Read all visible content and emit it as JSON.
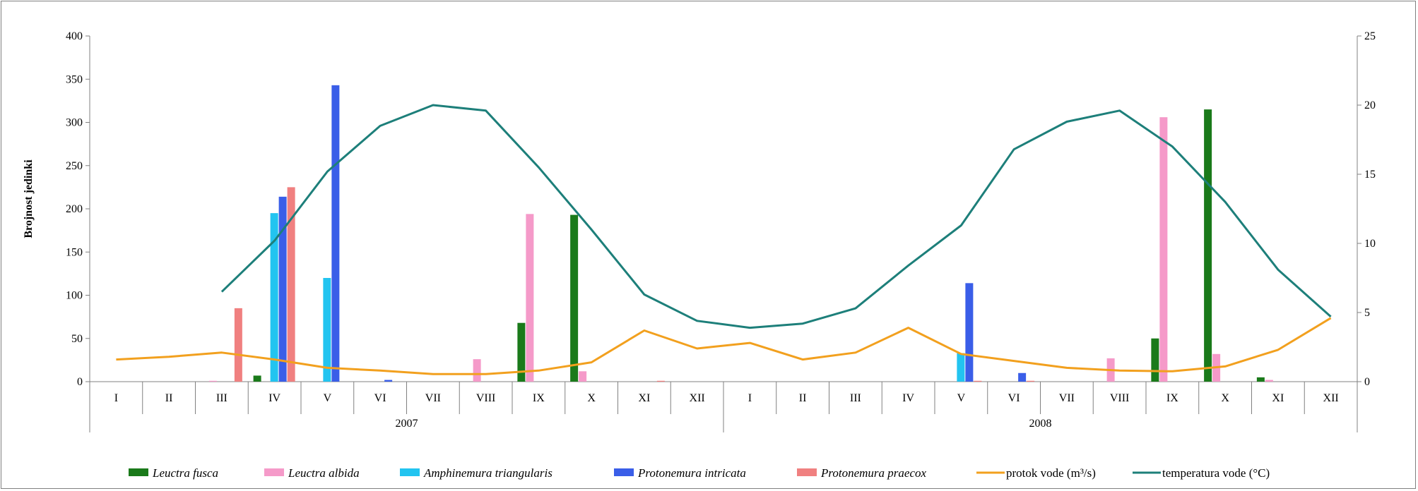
{
  "chart_data": {
    "type": "bar",
    "ylabel": "Brojnost jedinki",
    "ylim": [
      0,
      400
    ],
    "yticks": [
      0,
      50,
      100,
      150,
      200,
      250,
      300,
      350,
      400
    ],
    "y2lim": [
      0,
      25
    ],
    "y2ticks": [
      0,
      5,
      10,
      15,
      20,
      25
    ],
    "categories": [
      "I",
      "II",
      "III",
      "IV",
      "V",
      "VI",
      "VII",
      "VIII",
      "IX",
      "X",
      "XI",
      "XII",
      "I",
      "II",
      "III",
      "IV",
      "V",
      "VI",
      "VII",
      "VIII",
      "IX",
      "X",
      "XI",
      "XII"
    ],
    "groups": [
      {
        "label": "2007",
        "start": 0,
        "end": 12
      },
      {
        "label": "2008",
        "start": 12,
        "end": 24
      }
    ],
    "bar_series": [
      {
        "name": "Leuctra fusca",
        "italic": true,
        "color": "#1a7a1a",
        "values": [
          0,
          0,
          0,
          7,
          0,
          0,
          0,
          0,
          68,
          193,
          0,
          0,
          0,
          0,
          0,
          0,
          0,
          0,
          0,
          0,
          50,
          315,
          5,
          0
        ]
      },
      {
        "name": "Leuctra albida",
        "italic": true,
        "color": "#f59ac9",
        "values": [
          0,
          0,
          1,
          0,
          0,
          0,
          0,
          26,
          194,
          12,
          0,
          0,
          0,
          0,
          0,
          0,
          0,
          0,
          0,
          27,
          306,
          32,
          2,
          0
        ]
      },
      {
        "name": "Amphinemura triangularis",
        "italic": true,
        "color": "#22c4f0",
        "values": [
          0,
          0,
          0,
          195,
          120,
          0,
          0,
          0,
          0,
          0,
          0,
          0,
          0,
          0,
          0,
          0,
          33,
          0,
          0,
          0,
          0,
          0,
          0,
          0
        ]
      },
      {
        "name": "Protonemura intricata",
        "italic": true,
        "color": "#3a5ee8",
        "values": [
          0,
          0,
          0,
          214,
          343,
          2,
          0,
          0,
          0,
          0,
          0,
          0,
          0,
          0,
          0,
          0,
          114,
          10,
          0,
          0,
          0,
          0,
          0,
          0
        ]
      },
      {
        "name": "Protonemura praecox",
        "italic": true,
        "color": "#f08080",
        "values": [
          0,
          0,
          85,
          225,
          0,
          0,
          0,
          0,
          0,
          0,
          1,
          0,
          0,
          0,
          0,
          0,
          1,
          1,
          0,
          0,
          0,
          0,
          0,
          0
        ]
      }
    ],
    "line_series": [
      {
        "name": "protok vode (m³/s)",
        "italic": false,
        "color": "#f2a01e",
        "axis": "right",
        "values": [
          1.6,
          1.8,
          2.1,
          1.6,
          1.0,
          0.8,
          0.55,
          0.55,
          0.8,
          1.4,
          3.7,
          2.4,
          2.8,
          1.6,
          2.1,
          3.9,
          2.0,
          1.5,
          1.0,
          0.8,
          0.75,
          1.1,
          2.3,
          4.6
        ]
      },
      {
        "name": "temperatura vode (°C)",
        "italic": false,
        "color": "#1d7f7a",
        "axis": "right",
        "values": [
          null,
          null,
          6.5,
          10.2,
          15.2,
          18.5,
          20.0,
          19.6,
          15.5,
          11.0,
          6.3,
          4.4,
          3.9,
          4.2,
          5.3,
          8.4,
          11.3,
          16.8,
          18.8,
          19.6,
          17.0,
          13.0,
          8.1,
          4.7
        ]
      }
    ],
    "legend_position": "bottom",
    "grid": false
  }
}
